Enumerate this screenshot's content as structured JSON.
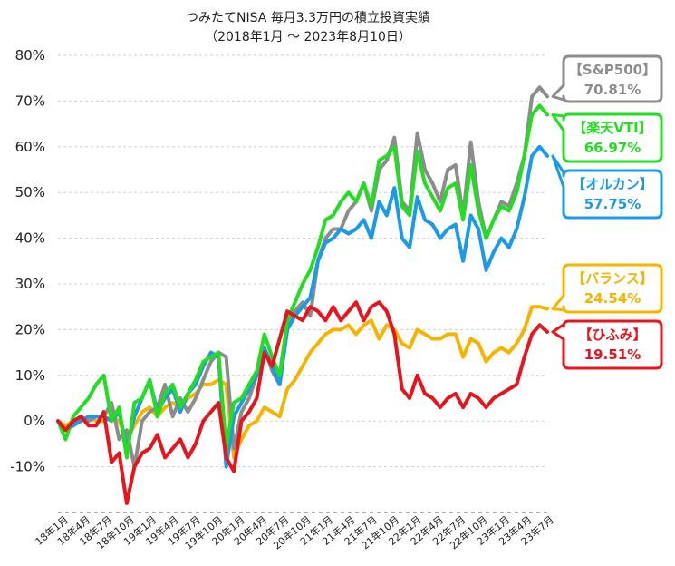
{
  "chart_data": {
    "type": "line",
    "title": "つみたてNISA 毎月3.3万円の積立投資実績",
    "subtitle": "（2018年1月 〜 2023年8月10日）",
    "xlabel": "",
    "ylabel": "",
    "ylim": [
      -20,
      80
    ],
    "yticks": [
      -10,
      0,
      10,
      20,
      30,
      40,
      50,
      60,
      70,
      80
    ],
    "ytick_labels": [
      "-10%",
      "0%",
      "10%",
      "20%",
      "30%",
      "40%",
      "50%",
      "60%",
      "70%",
      "80%"
    ],
    "x_tick_labels": [
      "18年1月",
      "18年4月",
      "18年7月",
      "18年10月",
      "19年1月",
      "19年4月",
      "19年7月",
      "19年10月",
      "20年1月",
      "20年4月",
      "20年7月",
      "20年10月",
      "21年1月",
      "21年4月",
      "21年7月",
      "21年10月",
      "22年1月",
      "22年4月",
      "22年7月",
      "22年10月",
      "23年1月",
      "23年4月",
      "23年7月"
    ],
    "grid": true,
    "legend": "right callouts",
    "series": [
      {
        "name": "【S&P500】",
        "final_label": "70.81%",
        "color": "#8c8c8c",
        "values": [
          0,
          -2,
          -1,
          1,
          0,
          1,
          1,
          4,
          -4,
          -2,
          -10,
          0,
          2,
          3,
          8,
          1,
          5,
          2,
          5,
          9,
          13,
          15,
          14,
          -6,
          2,
          5,
          10,
          16,
          11,
          8,
          20,
          24,
          26,
          23,
          35,
          40,
          42,
          42,
          46,
          48,
          52,
          46,
          55,
          57,
          62,
          48,
          46,
          63,
          55,
          52,
          48,
          55,
          56,
          45,
          61,
          48,
          40,
          44,
          48,
          47,
          52,
          58,
          71,
          73,
          71
        ],
        "draw_order": 2
      },
      {
        "name": "【楽天VTI】",
        "final_label": "66.97%",
        "color": "#22dd22",
        "values": [
          0,
          -4,
          1,
          3,
          5,
          8,
          10,
          0,
          3,
          -8,
          4,
          5,
          9,
          1,
          6,
          8,
          3,
          6,
          9,
          13,
          14,
          15,
          -6,
          4,
          5,
          8,
          11,
          19,
          14,
          10,
          22,
          26,
          30,
          33,
          38,
          44,
          45,
          48,
          50,
          48,
          52,
          47,
          57,
          58,
          60,
          47,
          45,
          59,
          52,
          49,
          46,
          51,
          52,
          44,
          56,
          46,
          40,
          44,
          47,
          46,
          50,
          58,
          67,
          69,
          67
        ],
        "draw_order": 4
      },
      {
        "name": "【オルカン】",
        "final_label": "57.75%",
        "color": "#1a9ae8",
        "values": [
          0,
          -2,
          -1,
          0,
          1,
          1,
          1,
          0,
          2,
          -6,
          1,
          5,
          9,
          2,
          5,
          7,
          2,
          6,
          8,
          12,
          15,
          14,
          -10,
          1,
          4,
          7,
          10,
          16,
          12,
          8,
          20,
          23,
          25,
          27,
          35,
          39,
          40,
          42,
          41,
          42,
          44,
          40,
          48,
          45,
          51,
          40,
          38,
          49,
          44,
          43,
          40,
          42,
          43,
          35,
          45,
          42,
          33,
          37,
          40,
          38,
          42,
          49,
          58,
          60,
          58
        ],
        "draw_order": 3
      },
      {
        "name": "【バランス】",
        "final_label": "24.54%",
        "color": "#f6b400",
        "values": [
          0,
          -1,
          0,
          0,
          1,
          0,
          0,
          1,
          0,
          -4,
          -1,
          2,
          3,
          1,
          3,
          4,
          3,
          5,
          6,
          8,
          8,
          9,
          8,
          -8,
          -4,
          -1,
          0,
          3,
          2,
          1,
          7,
          9,
          12,
          15,
          17,
          19,
          20,
          20,
          21,
          19,
          21,
          22,
          18,
          21,
          20,
          17,
          16,
          20,
          19,
          18,
          18,
          19,
          19,
          14,
          18,
          17,
          13,
          15,
          16,
          15,
          17,
          20,
          25,
          25,
          24.54
        ],
        "draw_order": 1
      },
      {
        "name": "【ひふみ】",
        "final_label": "19.51%",
        "color": "#e8141c",
        "values": [
          0,
          -2,
          0,
          1,
          -1,
          -1,
          2,
          -9,
          -7,
          -18,
          -10,
          -7,
          -6,
          -3,
          -8,
          -6,
          -4,
          -8,
          -5,
          0,
          2,
          4,
          -8,
          -11,
          0,
          2,
          5,
          15,
          12,
          18,
          24,
          23,
          22,
          25,
          24,
          22,
          25,
          22,
          24,
          26,
          22,
          25,
          26,
          24,
          19,
          7,
          5,
          10,
          6,
          5,
          3,
          5,
          6,
          3,
          6,
          5,
          3,
          5,
          6,
          7,
          8,
          14,
          19,
          21,
          19.51
        ],
        "draw_order": 5
      }
    ]
  }
}
